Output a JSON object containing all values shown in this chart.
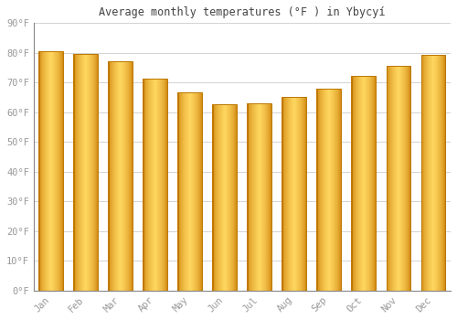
{
  "title": "Average monthly temperatures (°F ) in Ybycуí",
  "months": [
    "Jan",
    "Feb",
    "Mar",
    "Apr",
    "May",
    "Jun",
    "Jul",
    "Aug",
    "Sep",
    "Oct",
    "Nov",
    "Dec"
  ],
  "values": [
    80.6,
    79.7,
    77.2,
    71.4,
    66.7,
    62.6,
    63.0,
    65.1,
    67.8,
    72.3,
    75.6,
    79.3
  ],
  "bar_color_center": "#FFA500",
  "bar_color_edge_left": "#CC7700",
  "bar_color_edge_right": "#CC7700",
  "bar_color_highlight": "#FFD060",
  "background_color": "#FFFFFF",
  "grid_color": "#CCCCCC",
  "text_color": "#999999",
  "title_color": "#444444",
  "ylim": [
    0,
    90
  ],
  "yticks": [
    0,
    10,
    20,
    30,
    40,
    50,
    60,
    70,
    80,
    90
  ],
  "figsize": [
    5.0,
    3.5
  ],
  "dpi": 100
}
